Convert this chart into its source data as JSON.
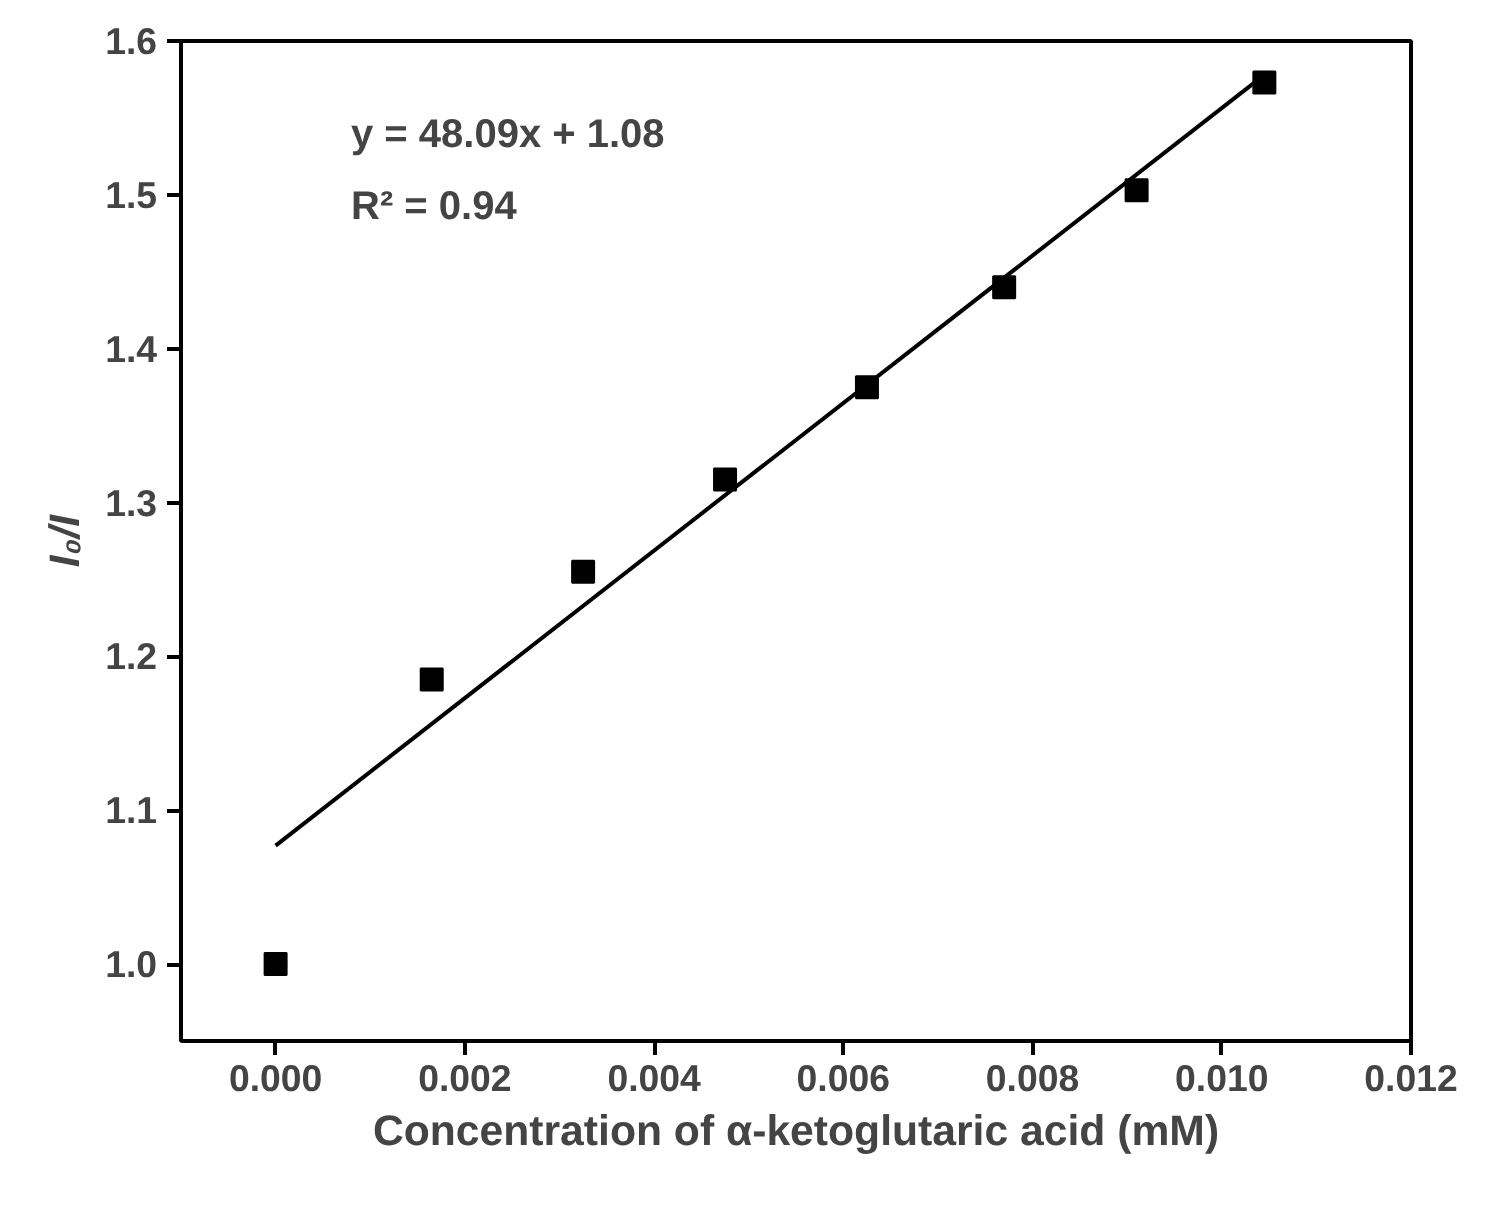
{
  "chart_data": {
    "type": "scatter",
    "xlabel": "Concentration of α-ketoglutaric acid (mM)",
    "ylabel": "I₀/I",
    "annotations": [
      "y = 48.09x + 1.08",
      "R² = 0.94"
    ],
    "xlim": [
      -0.001,
      0.012
    ],
    "xticks": [
      {
        "value": 0,
        "label": "0.000"
      },
      0.002,
      0.004,
      0.006,
      0.008,
      {
        "value": 0.01,
        "label": "0.010"
      },
      0.012
    ],
    "ylim": [
      0.95,
      1.6
    ],
    "yticks": [
      {
        "value": 1,
        "label": "1.0"
      },
      1.1,
      1.2,
      1.3,
      1.4,
      1.5,
      1.6
    ],
    "grid": false,
    "series": [
      {
        "marker": "square",
        "color": "#000000",
        "x": [
          0.0,
          0.00165,
          0.00325,
          0.00475,
          0.00625,
          0.0077,
          0.0091,
          0.01045
        ],
        "values": [
          1.0,
          1.185,
          1.255,
          1.315,
          1.375,
          1.44,
          1.503,
          1.573
        ]
      },
      {
        "type": "line",
        "color": "#000000",
        "line_style": "solid",
        "x": [
          0.0,
          0.01045
        ],
        "values": [
          1.077,
          1.578
        ]
      }
    ]
  }
}
